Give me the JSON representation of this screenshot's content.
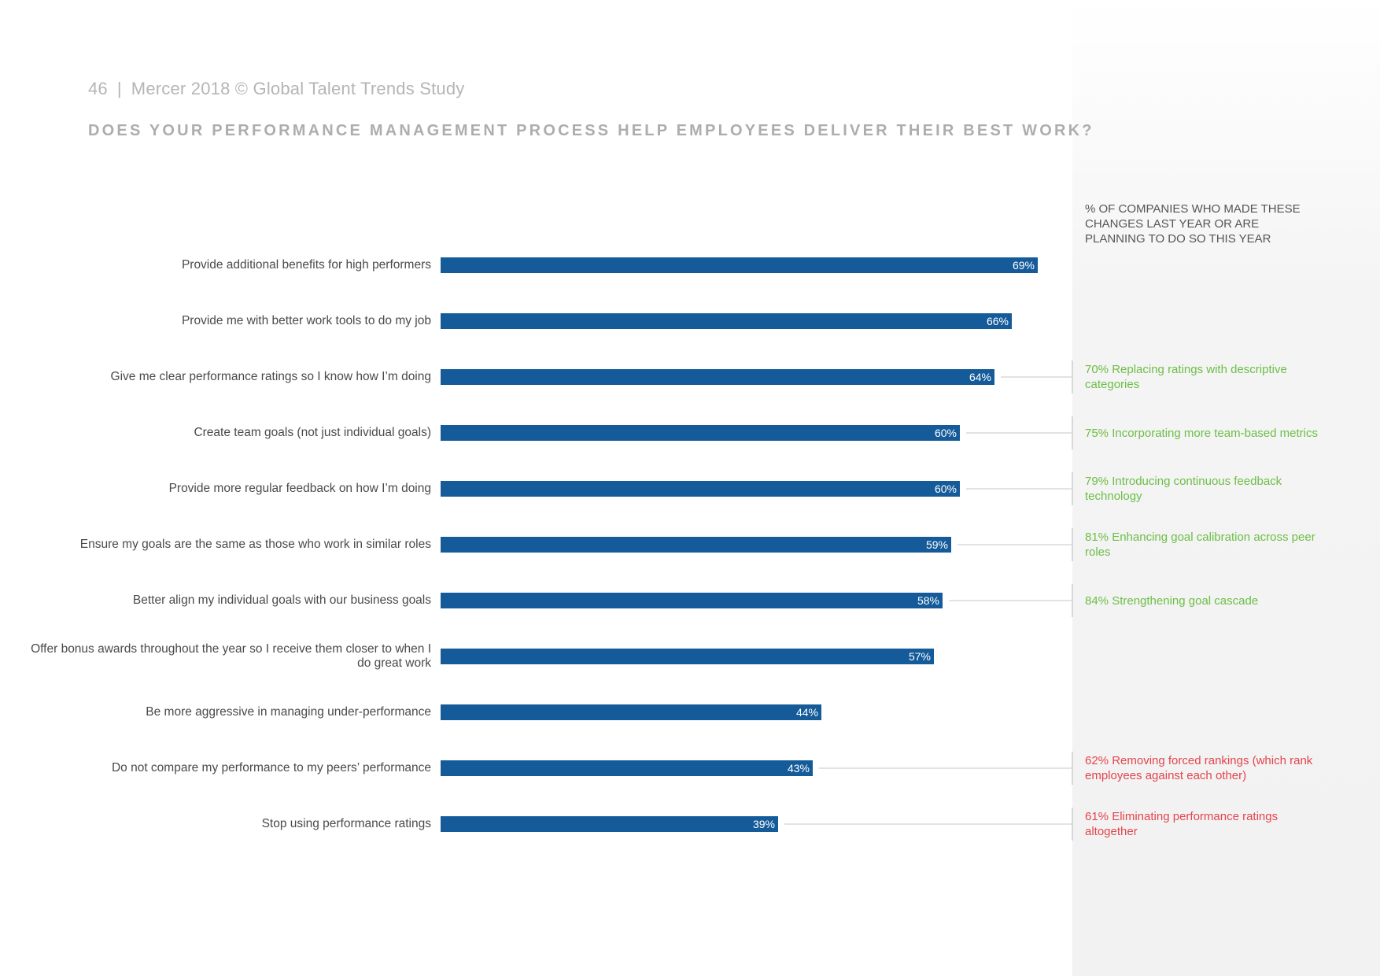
{
  "header": {
    "page_number": "46",
    "separator": "|",
    "publication": "Mercer 2018 © Global Talent Trends Study"
  },
  "colors": {
    "bar": "#155b99",
    "positive_note": "#6cbe45",
    "negative_note": "#e4444c"
  },
  "chart_data": {
    "type": "bar",
    "orientation": "horizontal",
    "title": "DOES YOUR PERFORMANCE MANAGEMENT PROCESS HELP EMPLOYEES DELIVER THEIR BEST WORK?",
    "value_suffix": "%",
    "xlim": [
      0,
      100
    ],
    "side_caption": "% of companies who made these changes last year or are planning to do so this year",
    "categories": [
      "Provide additional benefits for high performers",
      "Provide me with better work tools to do my job",
      "Give me clear performance ratings so I know how I’m doing",
      "Create team goals (not just individual goals)",
      "Provide more regular feedback on how I’m doing",
      "Ensure my goals are the same as those who work in similar roles",
      "Better align my individual goals with our business goals",
      "Offer bonus awards throughout the year so I receive them closer to when I do great work",
      "Be more aggressive in managing under-performance",
      "Do not compare my performance to my peers’ performance",
      "Stop using performance ratings"
    ],
    "values": [
      69,
      66,
      64,
      60,
      60,
      59,
      58,
      57,
      44,
      43,
      39
    ],
    "annotations": [
      {
        "row": 2,
        "text": "70% Replacing ratings with descriptive categories",
        "tone": "positive"
      },
      {
        "row": 3,
        "text": "75% Incorporating more team-based metrics",
        "tone": "positive"
      },
      {
        "row": 4,
        "text": "79% Introducing continuous feedback technology",
        "tone": "positive"
      },
      {
        "row": 5,
        "text": "81% Enhancing goal calibration across peer roles",
        "tone": "positive"
      },
      {
        "row": 6,
        "text": "84% Strengthening goal cascade",
        "tone": "positive"
      },
      {
        "row": 9,
        "text": "62% Removing forced rankings (which rank employees against each other)",
        "tone": "negative"
      },
      {
        "row": 10,
        "text": "61% Eliminating performance ratings altogether",
        "tone": "negative"
      }
    ]
  }
}
